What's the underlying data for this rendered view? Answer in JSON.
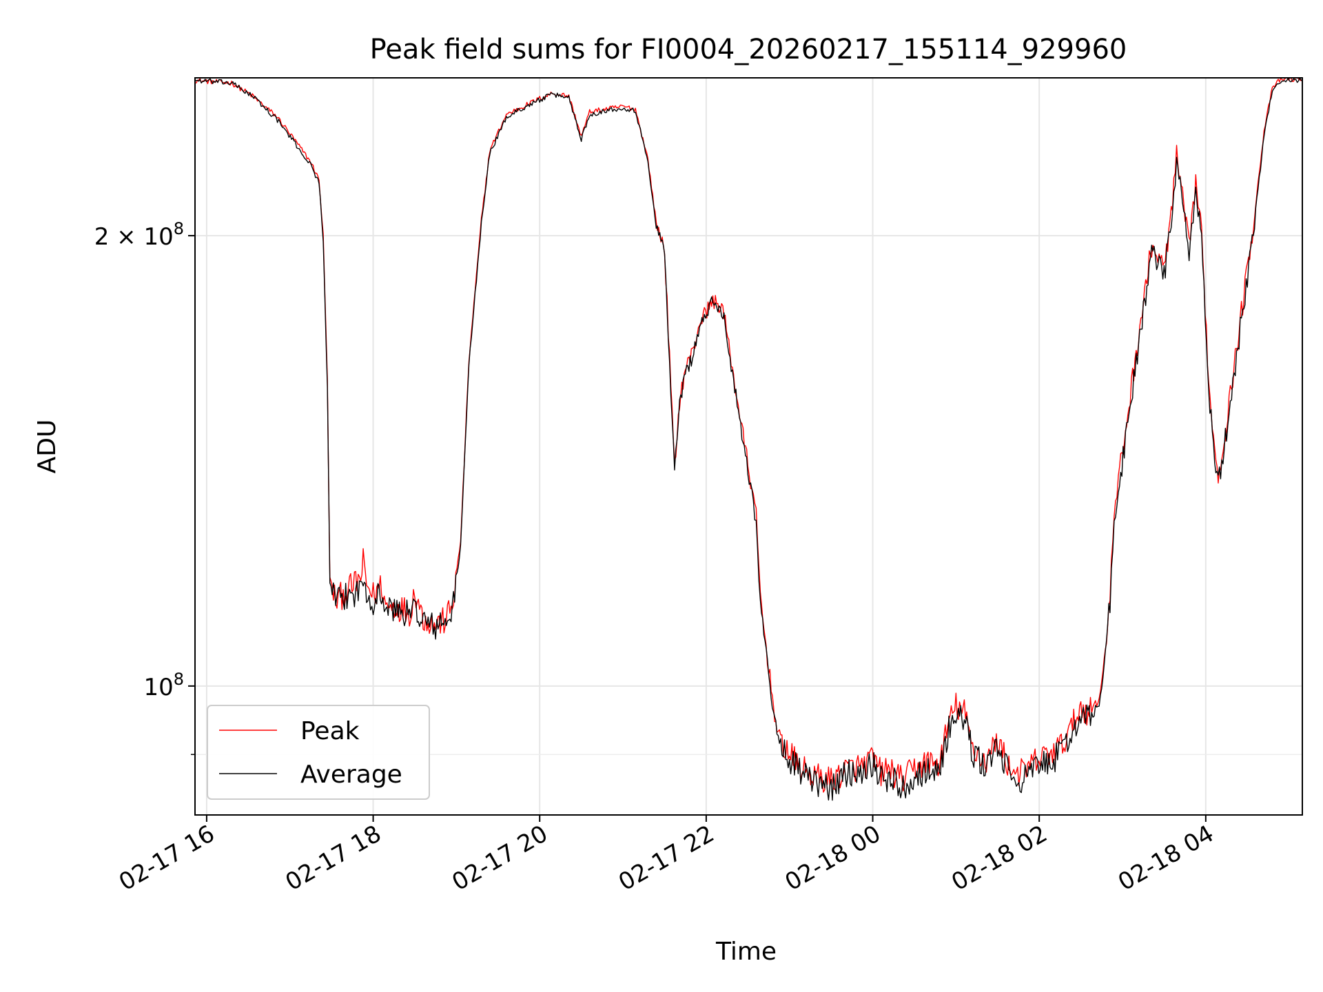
{
  "chart_data": {
    "type": "line",
    "title": "Peak field sums for FI0004_20260217_155114_929960",
    "xlabel": "Time",
    "ylabel": "ADU",
    "yscale": "log",
    "grid": true,
    "legend_position": "lower-left",
    "x_unit": "hours since 02-17 00:00",
    "xlim": [
      15.86,
      29.16
    ],
    "ylim": [
      82000000,
      255000000
    ],
    "x_ticks": [
      {
        "value": 16,
        "label": "02-17 16"
      },
      {
        "value": 18,
        "label": "02-17 18"
      },
      {
        "value": 20,
        "label": "02-17 20"
      },
      {
        "value": 22,
        "label": "02-17 22"
      },
      {
        "value": 24,
        "label": "02-18 00"
      },
      {
        "value": 26,
        "label": "02-18 02"
      },
      {
        "value": 28,
        "label": "02-18 04"
      }
    ],
    "y_major_ticks": [
      {
        "value": 100000000,
        "mantissa": "",
        "base": "10",
        "exponent": "8"
      },
      {
        "value": 200000000,
        "mantissa": "2 × ",
        "base": "10",
        "exponent": "8"
      }
    ],
    "y_minor_ticks": [
      90000000
    ],
    "series": [
      {
        "name": "Peak",
        "color": "#ff0000",
        "points": [
          [
            15.86,
            254000000
          ],
          [
            16.3,
            253000000
          ],
          [
            16.55,
            248000000
          ],
          [
            16.85,
            240000000
          ],
          [
            17.05,
            232000000
          ],
          [
            17.25,
            224000000
          ],
          [
            17.35,
            218000000
          ],
          [
            17.4,
            200000000
          ],
          [
            17.45,
            160000000
          ],
          [
            17.48,
            118000000
          ],
          [
            17.55,
            114000000
          ],
          [
            17.7,
            116000000
          ],
          [
            17.85,
            118000000
          ],
          [
            17.88,
            121000000
          ],
          [
            17.92,
            117000000
          ],
          [
            18.0,
            115000000
          ],
          [
            18.1,
            117000000
          ],
          [
            18.15,
            113000000
          ],
          [
            18.3,
            113000000
          ],
          [
            18.45,
            112000000
          ],
          [
            18.5,
            116000000
          ],
          [
            18.6,
            111000000
          ],
          [
            18.75,
            110000000
          ],
          [
            18.85,
            110500000
          ],
          [
            18.95,
            113000000
          ],
          [
            19.05,
            125000000
          ],
          [
            19.15,
            165000000
          ],
          [
            19.3,
            205000000
          ],
          [
            19.4,
            228000000
          ],
          [
            19.6,
            241000000
          ],
          [
            19.8,
            244000000
          ],
          [
            20.0,
            247000000
          ],
          [
            20.15,
            249000000
          ],
          [
            20.35,
            248000000
          ],
          [
            20.5,
            233000000
          ],
          [
            20.6,
            242000000
          ],
          [
            20.8,
            243000000
          ],
          [
            21.0,
            244000000
          ],
          [
            21.15,
            243000000
          ],
          [
            21.3,
            225000000
          ],
          [
            21.4,
            204000000
          ],
          [
            21.5,
            196000000
          ],
          [
            21.62,
            140000000
          ],
          [
            21.68,
            155000000
          ],
          [
            21.75,
            163000000
          ],
          [
            21.85,
            168000000
          ],
          [
            21.92,
            175000000
          ],
          [
            22.08,
            181000000
          ],
          [
            22.2,
            179000000
          ],
          [
            22.3,
            165000000
          ],
          [
            22.4,
            152000000
          ],
          [
            22.5,
            141000000
          ],
          [
            22.55,
            135000000
          ],
          [
            22.6,
            130000000
          ],
          [
            22.65,
            115000000
          ],
          [
            22.72,
            106000000
          ],
          [
            22.78,
            100000000
          ],
          [
            22.85,
            93000000
          ],
          [
            23.0,
            90000000
          ],
          [
            23.15,
            88000000
          ],
          [
            23.3,
            87000000
          ],
          [
            23.5,
            86500000
          ],
          [
            23.7,
            88000000
          ],
          [
            23.9,
            88500000
          ],
          [
            24.0,
            89500000
          ],
          [
            24.1,
            87500000
          ],
          [
            24.2,
            88000000
          ],
          [
            24.35,
            86500000
          ],
          [
            24.5,
            88000000
          ],
          [
            24.65,
            89000000
          ],
          [
            24.8,
            88500000
          ],
          [
            24.9,
            94000000
          ],
          [
            25.0,
            97000000
          ],
          [
            25.1,
            96000000
          ],
          [
            25.2,
            91000000
          ],
          [
            25.35,
            89000000
          ],
          [
            25.5,
            92000000
          ],
          [
            25.65,
            88000000
          ],
          [
            25.8,
            87500000
          ],
          [
            25.95,
            89000000
          ],
          [
            26.1,
            90000000
          ],
          [
            26.25,
            91000000
          ],
          [
            26.4,
            94000000
          ],
          [
            26.5,
            97000000
          ],
          [
            26.6,
            96000000
          ],
          [
            26.72,
            98000000
          ],
          [
            26.78,
            104000000
          ],
          [
            26.85,
            115000000
          ],
          [
            26.9,
            130000000
          ],
          [
            26.95,
            137000000
          ],
          [
            27.05,
            150000000
          ],
          [
            27.15,
            165000000
          ],
          [
            27.25,
            180000000
          ],
          [
            27.35,
            197000000
          ],
          [
            27.5,
            190000000
          ],
          [
            27.6,
            210000000
          ],
          [
            27.65,
            226000000
          ],
          [
            27.72,
            212000000
          ],
          [
            27.8,
            196000000
          ],
          [
            27.88,
            218000000
          ],
          [
            27.95,
            200000000
          ],
          [
            28.05,
            155000000
          ],
          [
            28.15,
            138000000
          ],
          [
            28.25,
            150000000
          ],
          [
            28.4,
            173000000
          ],
          [
            28.5,
            190000000
          ],
          [
            28.6,
            210000000
          ],
          [
            28.7,
            235000000
          ],
          [
            28.8,
            251000000
          ],
          [
            28.9,
            254500000
          ],
          [
            29.16,
            254500000
          ]
        ]
      },
      {
        "name": "Average",
        "color": "#000000",
        "points": [
          [
            15.86,
            254000000
          ],
          [
            16.3,
            253000000
          ],
          [
            16.55,
            248000000
          ],
          [
            16.85,
            239000000
          ],
          [
            17.05,
            231000000
          ],
          [
            17.25,
            223000000
          ],
          [
            17.35,
            217000000
          ],
          [
            17.4,
            199000000
          ],
          [
            17.45,
            158000000
          ],
          [
            17.48,
            117500000
          ],
          [
            17.55,
            113500000
          ],
          [
            17.7,
            115000000
          ],
          [
            17.85,
            116000000
          ],
          [
            17.88,
            118000000
          ],
          [
            17.92,
            116000000
          ],
          [
            18.0,
            114000000
          ],
          [
            18.1,
            115500000
          ],
          [
            18.15,
            112500000
          ],
          [
            18.3,
            112500000
          ],
          [
            18.45,
            111500000
          ],
          [
            18.5,
            113000000
          ],
          [
            18.6,
            110500000
          ],
          [
            18.75,
            109500000
          ],
          [
            18.85,
            110000000
          ],
          [
            18.95,
            112000000
          ],
          [
            19.05,
            124000000
          ],
          [
            19.15,
            164000000
          ],
          [
            19.3,
            204000000
          ],
          [
            19.4,
            227000000
          ],
          [
            19.6,
            240000000
          ],
          [
            19.8,
            243500000
          ],
          [
            20.0,
            246500000
          ],
          [
            20.15,
            248500000
          ],
          [
            20.35,
            247500000
          ],
          [
            20.5,
            232000000
          ],
          [
            20.6,
            241000000
          ],
          [
            20.8,
            242500000
          ],
          [
            21.0,
            243500000
          ],
          [
            21.15,
            242500000
          ],
          [
            21.3,
            224000000
          ],
          [
            21.4,
            203000000
          ],
          [
            21.5,
            195000000
          ],
          [
            21.62,
            139000000
          ],
          [
            21.68,
            154000000
          ],
          [
            21.75,
            162000000
          ],
          [
            21.85,
            167000000
          ],
          [
            21.92,
            174000000
          ],
          [
            22.08,
            180500000
          ],
          [
            22.2,
            178000000
          ],
          [
            22.3,
            164000000
          ],
          [
            22.4,
            151000000
          ],
          [
            22.5,
            140000000
          ],
          [
            22.55,
            134000000
          ],
          [
            22.6,
            129000000
          ],
          [
            22.65,
            114000000
          ],
          [
            22.72,
            105000000
          ],
          [
            22.78,
            99000000
          ],
          [
            22.85,
            92500000
          ],
          [
            23.0,
            89500000
          ],
          [
            23.15,
            87500000
          ],
          [
            23.3,
            86000000
          ],
          [
            23.5,
            85500000
          ],
          [
            23.7,
            87500000
          ],
          [
            23.9,
            88000000
          ],
          [
            24.0,
            89000000
          ],
          [
            24.1,
            86500000
          ],
          [
            24.2,
            87000000
          ],
          [
            24.35,
            85500000
          ],
          [
            24.5,
            87000000
          ],
          [
            24.65,
            88000000
          ],
          [
            24.8,
            87500000
          ],
          [
            24.9,
            93000000
          ],
          [
            25.0,
            96000000
          ],
          [
            25.1,
            95000000
          ],
          [
            25.2,
            90000000
          ],
          [
            25.35,
            88500000
          ],
          [
            25.5,
            91000000
          ],
          [
            25.65,
            87000000
          ],
          [
            25.8,
            86500000
          ],
          [
            25.95,
            88000000
          ],
          [
            26.1,
            89000000
          ],
          [
            26.25,
            90000000
          ],
          [
            26.4,
            93000000
          ],
          [
            26.5,
            96000000
          ],
          [
            26.6,
            95000000
          ],
          [
            26.72,
            97000000
          ],
          [
            26.78,
            103000000
          ],
          [
            26.85,
            114000000
          ],
          [
            26.9,
            128000000
          ],
          [
            26.95,
            135000000
          ],
          [
            27.05,
            148000000
          ],
          [
            27.15,
            163000000
          ],
          [
            27.25,
            178000000
          ],
          [
            27.35,
            195000000
          ],
          [
            27.5,
            188000000
          ],
          [
            27.6,
            208000000
          ],
          [
            27.65,
            224000000
          ],
          [
            27.72,
            210000000
          ],
          [
            27.8,
            194000000
          ],
          [
            27.88,
            216000000
          ],
          [
            27.95,
            198000000
          ],
          [
            28.05,
            153000000
          ],
          [
            28.15,
            136000000
          ],
          [
            28.25,
            148000000
          ],
          [
            28.4,
            171000000
          ],
          [
            28.5,
            188000000
          ],
          [
            28.6,
            208000000
          ],
          [
            28.7,
            233000000
          ],
          [
            28.8,
            250500000
          ],
          [
            28.9,
            254000000
          ],
          [
            29.16,
            254000000
          ]
        ]
      }
    ]
  }
}
